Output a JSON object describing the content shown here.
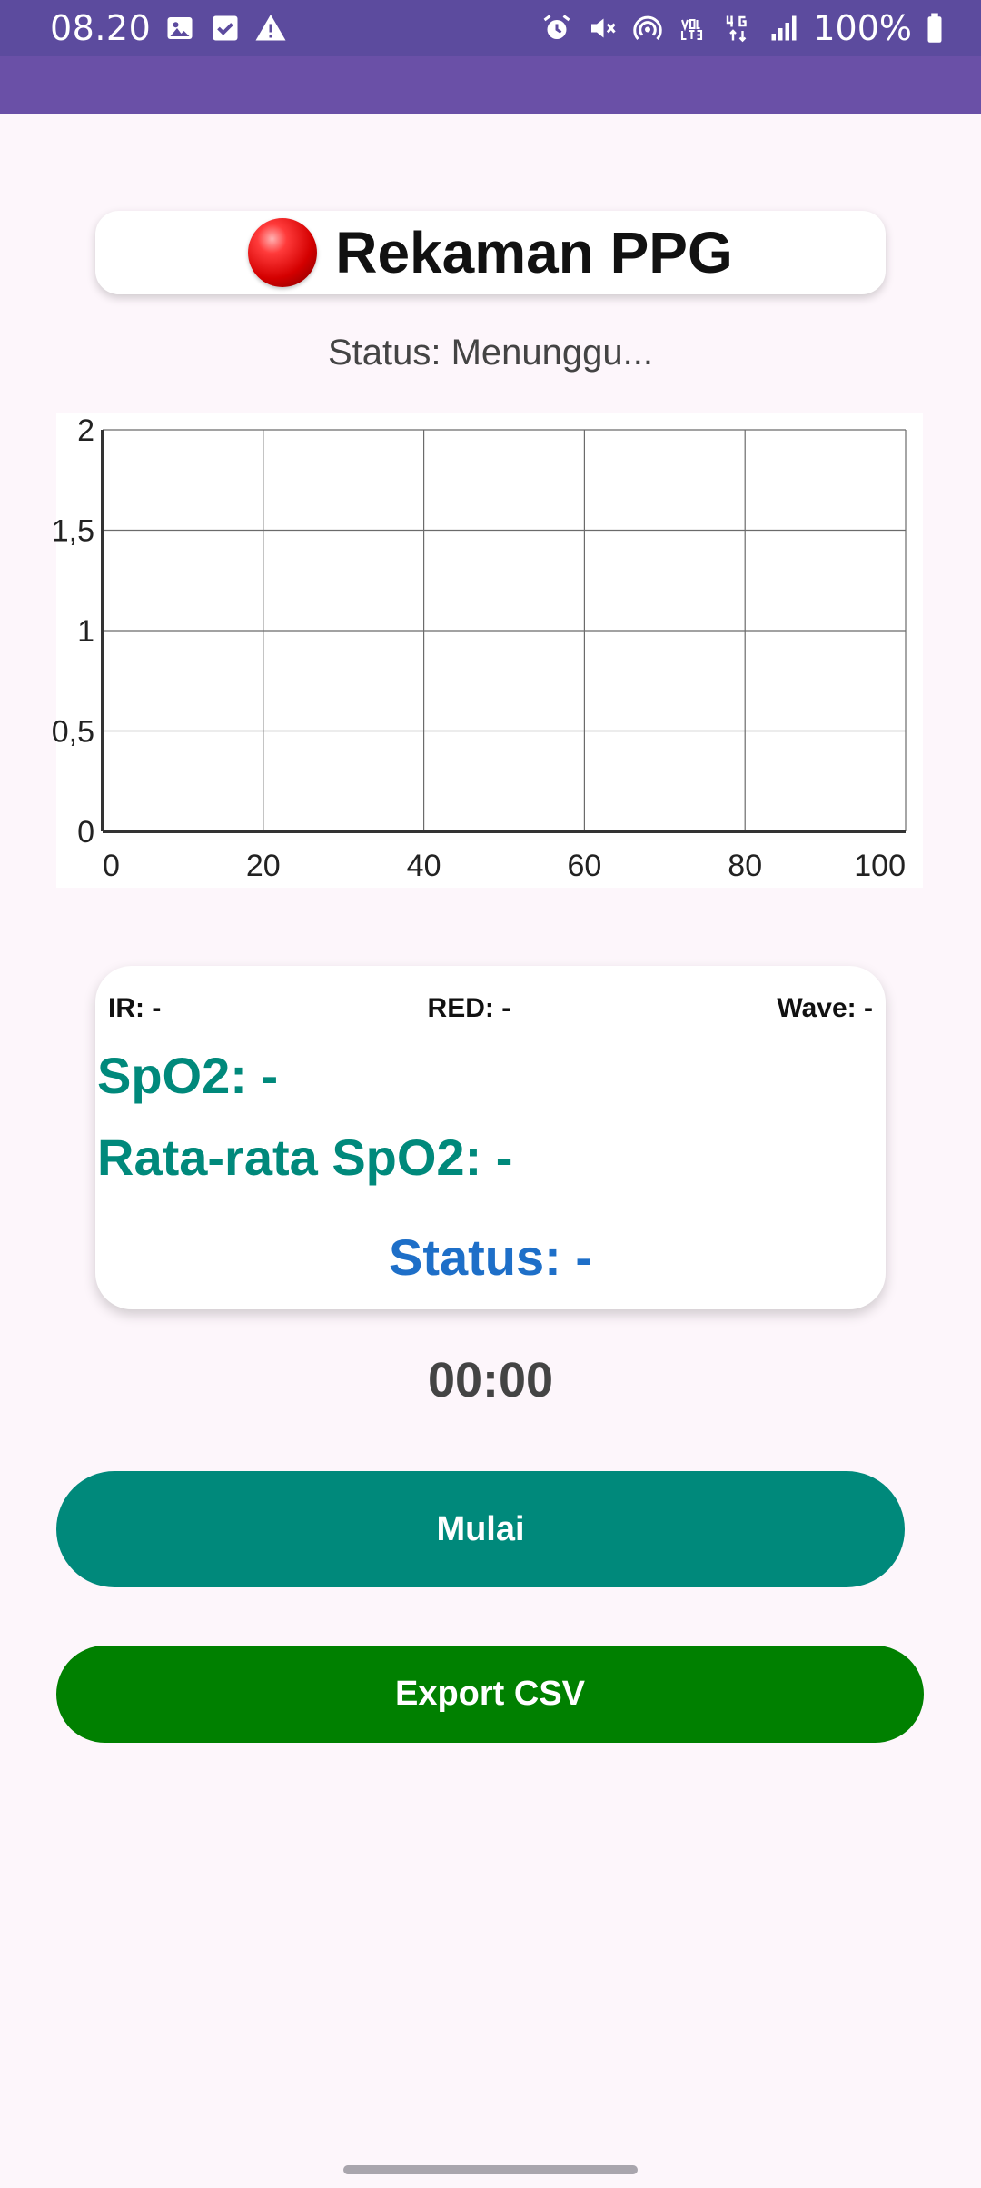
{
  "status_bar": {
    "time": "08.20",
    "battery_text": "100%",
    "left_icons": [
      "gallery-icon",
      "checkbox-icon",
      "warning-icon"
    ],
    "right_icons": [
      "alarm-icon",
      "mute-icon",
      "hotspot-icon",
      "volte-icon",
      "4g-data-icon",
      "signal-icon",
      "battery-icon"
    ],
    "colors": {
      "background": "#5c4b9e",
      "app_bar": "#6a50a7"
    }
  },
  "header": {
    "icon": "red-ball-icon",
    "title": "Rekaman PPG"
  },
  "status_text": "Status: Menunggu...",
  "chart_data": {
    "type": "line",
    "series": [],
    "x_ticks": [
      "0",
      "20",
      "40",
      "60",
      "80",
      "100"
    ],
    "y_ticks": [
      "0",
      "0,5",
      "1",
      "1,5",
      "2"
    ],
    "xlim": [
      0,
      100
    ],
    "ylim": [
      0,
      2
    ],
    "grid": true,
    "title": "",
    "xlabel": "",
    "ylabel": ""
  },
  "readings": {
    "ir": "IR: -",
    "red": "RED: -",
    "wave": "Wave: -",
    "spo2": "SpO2: -",
    "avg_spo2": "Rata-rata SpO2: -",
    "status": "Status: -"
  },
  "timer": "00:00",
  "buttons": {
    "start_label": "Mulai",
    "export_label": "Export CSV"
  },
  "colors": {
    "background": "#fdf6fb",
    "teal": "#00897b",
    "green": "#008000",
    "blue": "#1e6fc8"
  }
}
